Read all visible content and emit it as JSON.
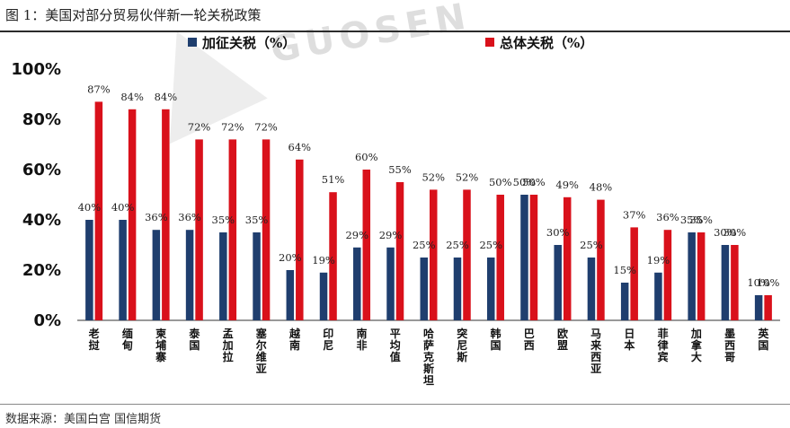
{
  "title": "图 1：美国对部分贸易伙伴新一轮关税政策",
  "source": "数据来源：美国白宫  国信期货",
  "watermark": "GUOSEN",
  "chart_data": {
    "type": "bar",
    "categories": [
      "老挝",
      "缅甸",
      "柬埔寨",
      "泰国",
      "孟加拉",
      "塞尔维亚",
      "越南",
      "印尼",
      "南非",
      "平均值",
      "哈萨克斯坦",
      "突尼斯",
      "韩国",
      "巴西",
      "欧盟",
      "马来西亚",
      "日本",
      "菲律宾",
      "加拿大",
      "墨西哥",
      "英国"
    ],
    "series": [
      {
        "name": "加征关税（%）",
        "color": "#1f3e6e",
        "values": [
          40,
          40,
          36,
          36,
          35,
          35,
          20,
          19,
          29,
          29,
          25,
          25,
          25,
          50,
          30,
          25,
          15,
          19,
          35,
          30,
          10
        ]
      },
      {
        "name": "总体关税（%）",
        "color": "#d9111b",
        "values": [
          87,
          84,
          84,
          72,
          72,
          72,
          64,
          51,
          60,
          55,
          52,
          52,
          50,
          50,
          49,
          48,
          37,
          36,
          35,
          30,
          10
        ]
      }
    ],
    "yticks": [
      "0%",
      "20%",
      "40%",
      "60%",
      "80%",
      "100%"
    ],
    "ylim": [
      0,
      100
    ],
    "legend": "top",
    "grid": false
  }
}
